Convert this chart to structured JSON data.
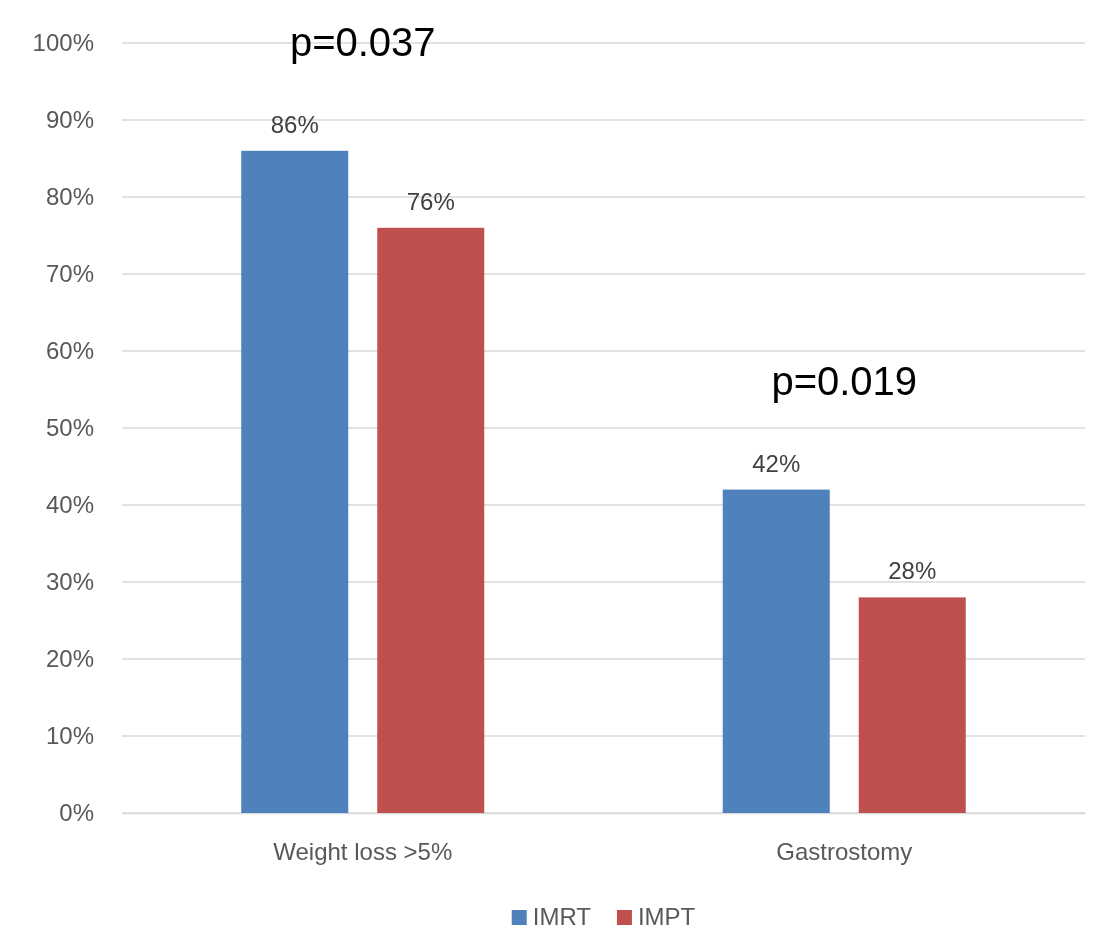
{
  "chart_data": {
    "type": "bar",
    "categories": [
      "Weight loss >5%",
      "Gastrostomy"
    ],
    "series": [
      {
        "name": "IMRT",
        "color": "#4f81bd",
        "values": [
          86,
          42
        ],
        "value_labels": [
          "86%",
          "42%"
        ]
      },
      {
        "name": "IMPT",
        "color": "#c0504d",
        "values": [
          76,
          28
        ],
        "value_labels": [
          "76%",
          "28%"
        ]
      }
    ],
    "ylim": [
      0,
      100
    ],
    "yticks": [
      {
        "value": 0,
        "label": "0%"
      },
      {
        "value": 10,
        "label": "10%"
      },
      {
        "value": 20,
        "label": "20%"
      },
      {
        "value": 30,
        "label": "30%"
      },
      {
        "value": 40,
        "label": "40%"
      },
      {
        "value": 50,
        "label": "50%"
      },
      {
        "value": 60,
        "label": "60%"
      },
      {
        "value": 70,
        "label": "70%"
      },
      {
        "value": 80,
        "label": "80%"
      },
      {
        "value": 90,
        "label": "90%"
      },
      {
        "value": 100,
        "label": "100%"
      }
    ],
    "grid": "y",
    "legend": "bottom",
    "annotations": [
      "p=0.037",
      "p=0.019"
    ]
  }
}
